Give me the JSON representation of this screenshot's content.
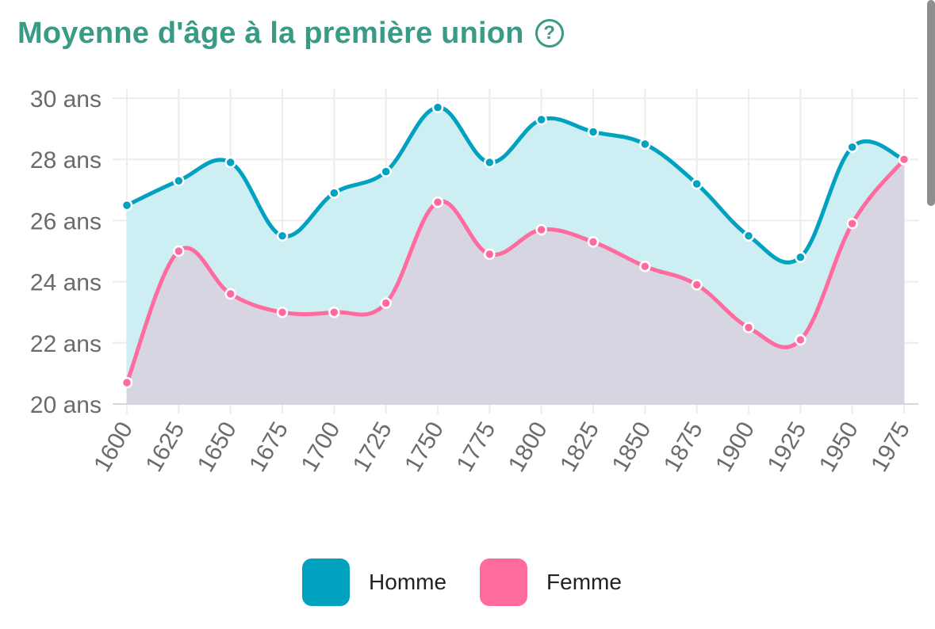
{
  "title": "Moyenne d'âge à la première union",
  "help_icon": "?",
  "colors": {
    "title": "#3a9a86",
    "homme": "#00a2bf",
    "homme_fill": "#cdeef3",
    "femme": "#ff6b9e",
    "femme_fill": "#d8d3e0",
    "grid": "#ececec",
    "tick": "#6b6b6b"
  },
  "legend": [
    {
      "label": "Homme",
      "color": "#00a2bf"
    },
    {
      "label": "Femme",
      "color": "#ff6b9e"
    }
  ],
  "chart_data": {
    "type": "area",
    "x": [
      1600,
      1625,
      1650,
      1675,
      1700,
      1725,
      1750,
      1775,
      1800,
      1825,
      1850,
      1875,
      1900,
      1925,
      1950,
      1975
    ],
    "x_tick_labels": [
      "1600",
      "1625",
      "1650",
      "1675",
      "1700",
      "1725",
      "1750",
      "1775",
      "1800",
      "1825",
      "1850",
      "1875",
      "1900",
      "1925",
      "1950",
      "1975"
    ],
    "y_ticks": [
      20,
      22,
      24,
      26,
      28,
      30
    ],
    "y_tick_labels": [
      "20 ans",
      "22 ans",
      "24 ans",
      "26 ans",
      "28 ans",
      "30 ans"
    ],
    "ylim": [
      20,
      30
    ],
    "grid": true,
    "legend_position": "bottom",
    "series": [
      {
        "name": "Homme",
        "values": [
          26.5,
          27.3,
          27.9,
          25.5,
          26.9,
          27.6,
          29.7,
          27.9,
          29.3,
          28.9,
          28.5,
          27.2,
          25.5,
          24.8,
          28.4,
          28.0
        ]
      },
      {
        "name": "Femme",
        "values": [
          20.7,
          25.0,
          23.6,
          23.0,
          23.0,
          23.3,
          26.6,
          24.9,
          25.7,
          25.3,
          24.5,
          23.9,
          22.5,
          22.1,
          25.9,
          28.0
        ]
      }
    ]
  }
}
